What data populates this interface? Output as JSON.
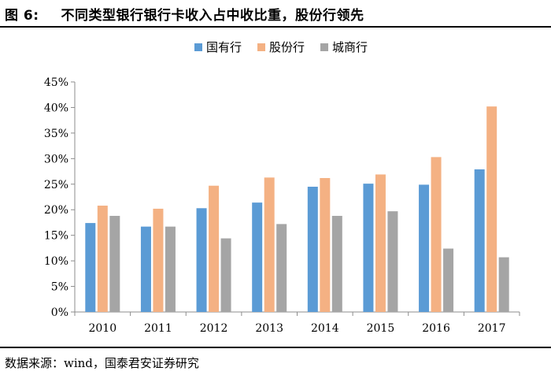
{
  "figure": {
    "label": "图 6:",
    "title": "不同类型银行银行卡收入占中收比重，股份行领先"
  },
  "source": "数据来源：wind，国泰君安证券研究",
  "chart_data": {
    "type": "bar",
    "title": "不同类型银行银行卡收入占中收比重，股份行领先",
    "xlabel": "",
    "ylabel": "",
    "categories": [
      "2010",
      "2011",
      "2012",
      "2013",
      "2014",
      "2015",
      "2016",
      "2017"
    ],
    "series": [
      {
        "name": "国有行",
        "color": "#5B9BD5",
        "values": [
          17.4,
          16.7,
          20.3,
          21.4,
          24.5,
          25.1,
          24.9,
          27.9
        ]
      },
      {
        "name": "股份行",
        "color": "#F4B183",
        "values": [
          20.8,
          20.2,
          24.7,
          26.3,
          26.2,
          26.9,
          30.3,
          40.2
        ]
      },
      {
        "name": "城商行",
        "color": "#A5A5A5",
        "values": [
          18.8,
          16.7,
          14.4,
          17.2,
          18.8,
          19.7,
          12.4,
          10.7
        ]
      }
    ],
    "ylim": [
      0,
      45
    ],
    "yticks": [
      0,
      5,
      10,
      15,
      20,
      25,
      30,
      35,
      40,
      45
    ],
    "ytick_labels": [
      "0%",
      "5%",
      "10%",
      "15%",
      "20%",
      "25%",
      "30%",
      "35%",
      "40%",
      "45%"
    ],
    "legend_position": "top-center",
    "grid": false
  }
}
